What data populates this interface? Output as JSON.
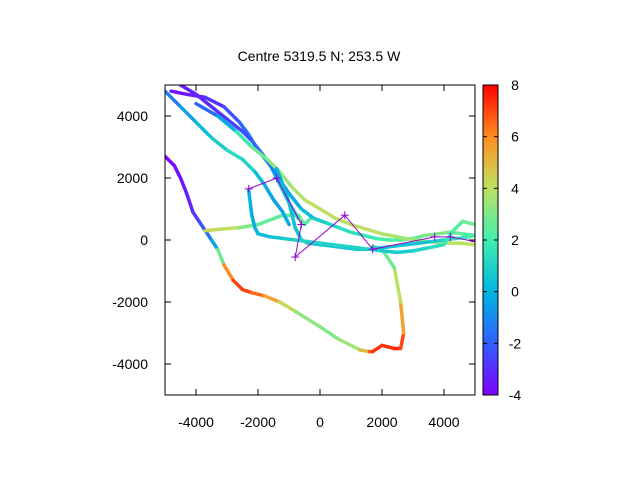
{
  "chart_data": {
    "type": "scatter",
    "title": "Centre 5319.5 N; 253.5  W",
    "xlabel": "",
    "ylabel": "",
    "xlim": [
      -5000,
      5000
    ],
    "ylim": [
      -5000,
      5000
    ],
    "xticks": [
      -4000,
      -2000,
      0,
      2000,
      4000
    ],
    "yticks": [
      -4000,
      -2000,
      0,
      2000,
      4000
    ],
    "colorbar": {
      "range": [
        -4,
        8
      ],
      "ticks": [
        -4,
        -2,
        0,
        2,
        4,
        6,
        8
      ],
      "palette": "rainbow"
    },
    "tracks": [
      {
        "x": [
          -5000,
          -4700,
          -4500,
          -4300,
          -4100,
          -3900,
          -3700,
          -3500,
          -3300
        ],
        "y": [
          2700,
          2400,
          2000,
          1500,
          900,
          600,
          300,
          0,
          -300
        ],
        "c": [
          -4,
          -3.8,
          -3.6,
          -3.4,
          -3.2,
          -2.5,
          -2,
          -1,
          0
        ]
      },
      {
        "x": [
          -3300,
          -3100,
          -2800,
          -2500,
          -2200,
          -1800,
          -1300,
          -800,
          0,
          600,
          1300,
          1600,
          1700
        ],
        "y": [
          -300,
          -800,
          -1300,
          -1600,
          -1700,
          -1800,
          -2000,
          -2300,
          -2800,
          -3200,
          -3550,
          -3600,
          -3600
        ],
        "c": [
          0.5,
          5,
          7,
          7.2,
          7,
          6,
          5,
          3.5,
          3,
          3,
          4,
          6,
          7.5
        ]
      },
      {
        "x": [
          1700,
          2000,
          2400,
          2600,
          2700,
          2600,
          2400,
          2000,
          1700
        ],
        "y": [
          -3600,
          -3400,
          -3500,
          -3500,
          -3000,
          -2000,
          -900,
          -300,
          -200
        ],
        "c": [
          7.5,
          7,
          7.5,
          7.5,
          6.5,
          4.5,
          3.5,
          2,
          1.5
        ]
      },
      {
        "x": [
          -3700,
          -3200,
          -2600,
          -2000,
          -1200,
          -700,
          -500,
          -300
        ],
        "y": [
          300,
          350,
          400,
          500,
          800,
          800,
          500,
          700
        ],
        "c": [
          4,
          4.5,
          3.5,
          2.5,
          2.5,
          3,
          2.5,
          2
        ]
      },
      {
        "x": [
          -4800,
          -4300,
          -3700,
          -3100,
          -2600,
          -2300,
          -2000,
          -1600,
          -1300,
          -1000,
          -700
        ],
        "y": [
          4800,
          4700,
          4600,
          4300,
          3800,
          3400,
          2900,
          2400,
          1800,
          1200,
          700
        ],
        "c": [
          -3.8,
          -3.6,
          -3.2,
          -2.5,
          -2,
          -1.5,
          -1,
          0,
          0.5,
          1,
          1.5
        ]
      },
      {
        "x": [
          -4500,
          -4000,
          -3500,
          -3000,
          -2500,
          -2200,
          -1800,
          -1400,
          -1000,
          -600,
          -200,
          200,
          600,
          1000,
          1400,
          1800,
          2200,
          2600,
          3000,
          3400,
          3800,
          4200,
          4600,
          5000
        ],
        "y": [
          5000,
          4700,
          4300,
          3900,
          3500,
          3200,
          2700,
          2100,
          1500,
          1000,
          700,
          550,
          400,
          250,
          150,
          50,
          0,
          0,
          50,
          150,
          200,
          250,
          200,
          150
        ],
        "c": [
          -3.5,
          -3.3,
          -3,
          -2.8,
          -2.5,
          -2,
          -1.5,
          -1,
          -0.5,
          0,
          0.5,
          1,
          1.2,
          1.5,
          1.5,
          2,
          2,
          2.5,
          2.5,
          3,
          3,
          3,
          2.5,
          2
        ]
      },
      {
        "x": [
          -4000,
          -3300,
          -2700,
          -2200,
          -1700,
          -1300,
          -900,
          -500,
          0,
          500,
          1000,
          1500,
          2000,
          2500,
          3000,
          3500,
          4000,
          4500,
          5000
        ],
        "y": [
          4400,
          4000,
          3500,
          3000,
          2600,
          2200,
          1700,
          1300,
          1000,
          700,
          500,
          350,
          200,
          100,
          0,
          -50,
          -100,
          -100,
          -150
        ],
        "c": [
          -2,
          -1.5,
          1,
          2.5,
          3,
          3.5,
          3.5,
          4,
          4,
          4,
          4,
          4,
          4,
          3.5,
          3.5,
          3.5,
          4,
          4,
          4
        ]
      },
      {
        "x": [
          -5000,
          -4500,
          -4000,
          -3500,
          -3000,
          -2500,
          -2100,
          -1800,
          -1500,
          -1200,
          -1000
        ],
        "y": [
          4800,
          4300,
          3800,
          3300,
          2900,
          2600,
          2200,
          1800,
          1300,
          900,
          500
        ],
        "c": [
          -1.5,
          -1,
          0,
          0.5,
          1,
          1.5,
          0.5,
          0,
          -0.5,
          -0.5,
          0
        ]
      },
      {
        "x": [
          -1400,
          -1200,
          -1000,
          -900,
          -800,
          -700,
          -600,
          -400,
          0,
          400,
          800,
          1200,
          1600,
          2000,
          2400,
          2800,
          3200,
          3600,
          4000,
          4400,
          4800,
          5000
        ],
        "y": [
          2300,
          1800,
          1200,
          800,
          400,
          200,
          0,
          -100,
          -150,
          -200,
          -250,
          -300,
          -300,
          -250,
          -200,
          -150,
          -100,
          -50,
          0,
          50,
          100,
          150
        ],
        "c": [
          0,
          0,
          0.5,
          0.5,
          0.5,
          0.5,
          0.5,
          0.5,
          0.5,
          0.5,
          0.5,
          0.5,
          0.5,
          0.5,
          0.5,
          0.5,
          0.5,
          0.5,
          1,
          1.5,
          2,
          2.5
        ]
      },
      {
        "x": [
          -2300,
          -2200,
          -2100,
          -2000,
          -1600,
          -1200,
          -800,
          -400,
          0,
          400,
          800,
          1200,
          1600,
          2000,
          2500,
          3000,
          3500,
          4000,
          4300,
          4600,
          5000
        ],
        "y": [
          1600,
          800,
          400,
          200,
          100,
          50,
          0,
          -50,
          -100,
          -150,
          -200,
          -250,
          -300,
          -350,
          -400,
          -350,
          -250,
          -150,
          300,
          600,
          500
        ],
        "c": [
          0,
          0,
          -0.2,
          0,
          0.5,
          0.5,
          1,
          1,
          1,
          1,
          1,
          1,
          1,
          1,
          0.5,
          1,
          1,
          1.5,
          2,
          2.5,
          3
        ]
      }
    ],
    "markers": {
      "color": "#9400d3",
      "x": [
        -2300,
        -1400,
        -600,
        -800,
        800,
        1700,
        3700,
        4200,
        5000
      ],
      "y": [
        1650,
        2000,
        500,
        -550,
        800,
        -300,
        100,
        100,
        -50
      ]
    }
  }
}
